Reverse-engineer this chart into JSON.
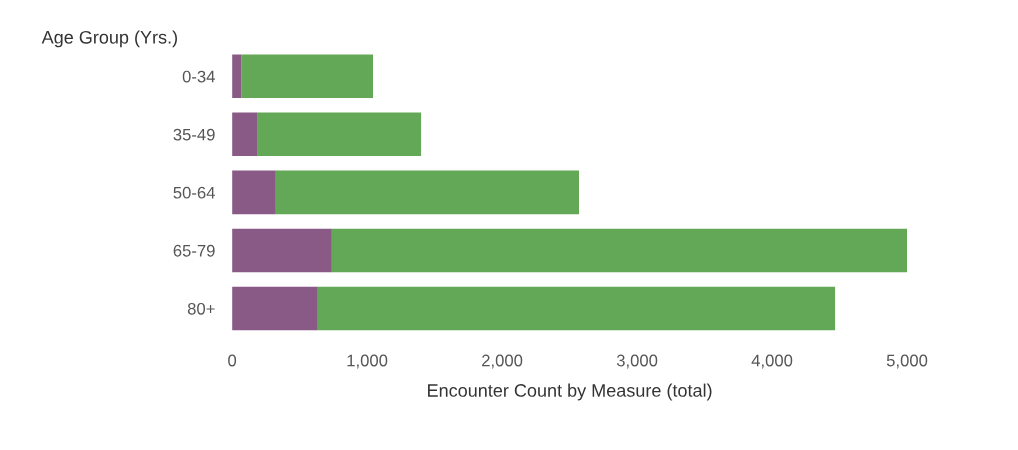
{
  "chart_data": {
    "type": "bar",
    "orientation": "horizontal",
    "stacked": true,
    "ylabel": "Age Group (Yrs.)",
    "xlabel": "Encounter Count by Measure (total)",
    "categories": [
      "0-34",
      "35-49",
      "50-64",
      "65-79",
      "80+"
    ],
    "series": [
      {
        "color": "#8a5a87",
        "values": [
          67,
          190,
          324,
          739,
          635
        ]
      },
      {
        "color": "#62a857",
        "values": [
          977,
          1210,
          2246,
          4261,
          3832
        ]
      }
    ],
    "xlim": [
      0,
      5000
    ],
    "xticks": [
      0,
      {
        "value": 1000,
        "label": "1,000"
      },
      {
        "value": 2000,
        "label": "2,000"
      },
      {
        "value": 3000,
        "label": "3,000"
      },
      {
        "value": 4000,
        "label": "4,000"
      },
      {
        "value": 5000,
        "label": "5,000"
      }
    ],
    "grid": false
  }
}
